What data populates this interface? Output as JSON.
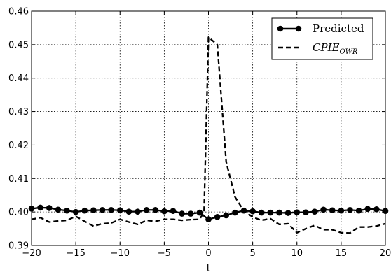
{
  "chart_data": {
    "type": "line",
    "title": "",
    "xlabel": "t",
    "ylabel": "",
    "xlim": [
      -20,
      20
    ],
    "ylim": [
      0.39,
      0.46
    ],
    "grid": true,
    "legend_position": "top-right",
    "x_ticks": [
      -20,
      -15,
      -10,
      -5,
      0,
      5,
      10,
      15,
      20
    ],
    "y_ticks": [
      0.39,
      0.4,
      0.41,
      0.42,
      0.43,
      0.44,
      0.45,
      0.46
    ],
    "x_tick_labels": [
      "−20",
      "−15",
      "−10",
      "−5",
      "0",
      "5",
      "10",
      "15",
      "20"
    ],
    "y_tick_labels": [
      "0.39",
      "0.40",
      "0.41",
      "0.42",
      "0.43",
      "0.44",
      "0.45",
      "0.46"
    ],
    "series": [
      {
        "name": "Predicted",
        "style": "solid-line-circle-markers",
        "color": "#000000",
        "x": [
          -20,
          -19,
          -18,
          -17,
          -16,
          -15,
          -14,
          -13,
          -12,
          -11,
          -10,
          -9,
          -8,
          -7,
          -6,
          -5,
          -4,
          -3,
          -2,
          -1,
          0,
          1,
          2,
          3,
          4,
          5,
          6,
          7,
          8,
          9,
          10,
          11,
          12,
          13,
          14,
          15,
          16,
          17,
          18,
          19,
          20
        ],
        "y": [
          0.401,
          0.4013,
          0.4012,
          0.4007,
          0.4004,
          0.4,
          0.4004,
          0.4005,
          0.4006,
          0.4006,
          0.4005,
          0.4001,
          0.4001,
          0.4006,
          0.4006,
          0.4002,
          0.4003,
          0.3995,
          0.3995,
          0.3998,
          0.3978,
          0.3985,
          0.399,
          0.3998,
          0.4004,
          0.4002,
          0.3998,
          0.3998,
          0.3998,
          0.3997,
          0.3999,
          0.3999,
          0.4001,
          0.4007,
          0.4005,
          0.4004,
          0.4006,
          0.4004,
          0.4009,
          0.4008,
          0.4003
        ]
      },
      {
        "name_main": "CPIE",
        "name_sub": "OWR",
        "style": "dashed-line",
        "color": "#000000",
        "x": [
          -20,
          -19,
          -18,
          -17,
          -16,
          -15,
          -14,
          -13,
          -12,
          -11,
          -10,
          -9,
          -8,
          -7,
          -6,
          -5,
          -4,
          -3,
          -2,
          -1,
          -0.5,
          0,
          1,
          2,
          3,
          4,
          5,
          6,
          7,
          8,
          9,
          10,
          11,
          12,
          13,
          14,
          15,
          16,
          17,
          18,
          19,
          20
        ],
        "y": [
          0.3978,
          0.3983,
          0.397,
          0.3973,
          0.3975,
          0.3987,
          0.3972,
          0.3958,
          0.3965,
          0.3967,
          0.3978,
          0.397,
          0.3963,
          0.3975,
          0.3972,
          0.3978,
          0.3978,
          0.3975,
          0.3977,
          0.3978,
          0.4,
          0.4522,
          0.45,
          0.415,
          0.4045,
          0.4003,
          0.3985,
          0.3975,
          0.398,
          0.3963,
          0.3965,
          0.3938,
          0.395,
          0.396,
          0.3947,
          0.3947,
          0.3938,
          0.3937,
          0.3955,
          0.3955,
          0.3958,
          0.3965
        ]
      }
    ]
  }
}
